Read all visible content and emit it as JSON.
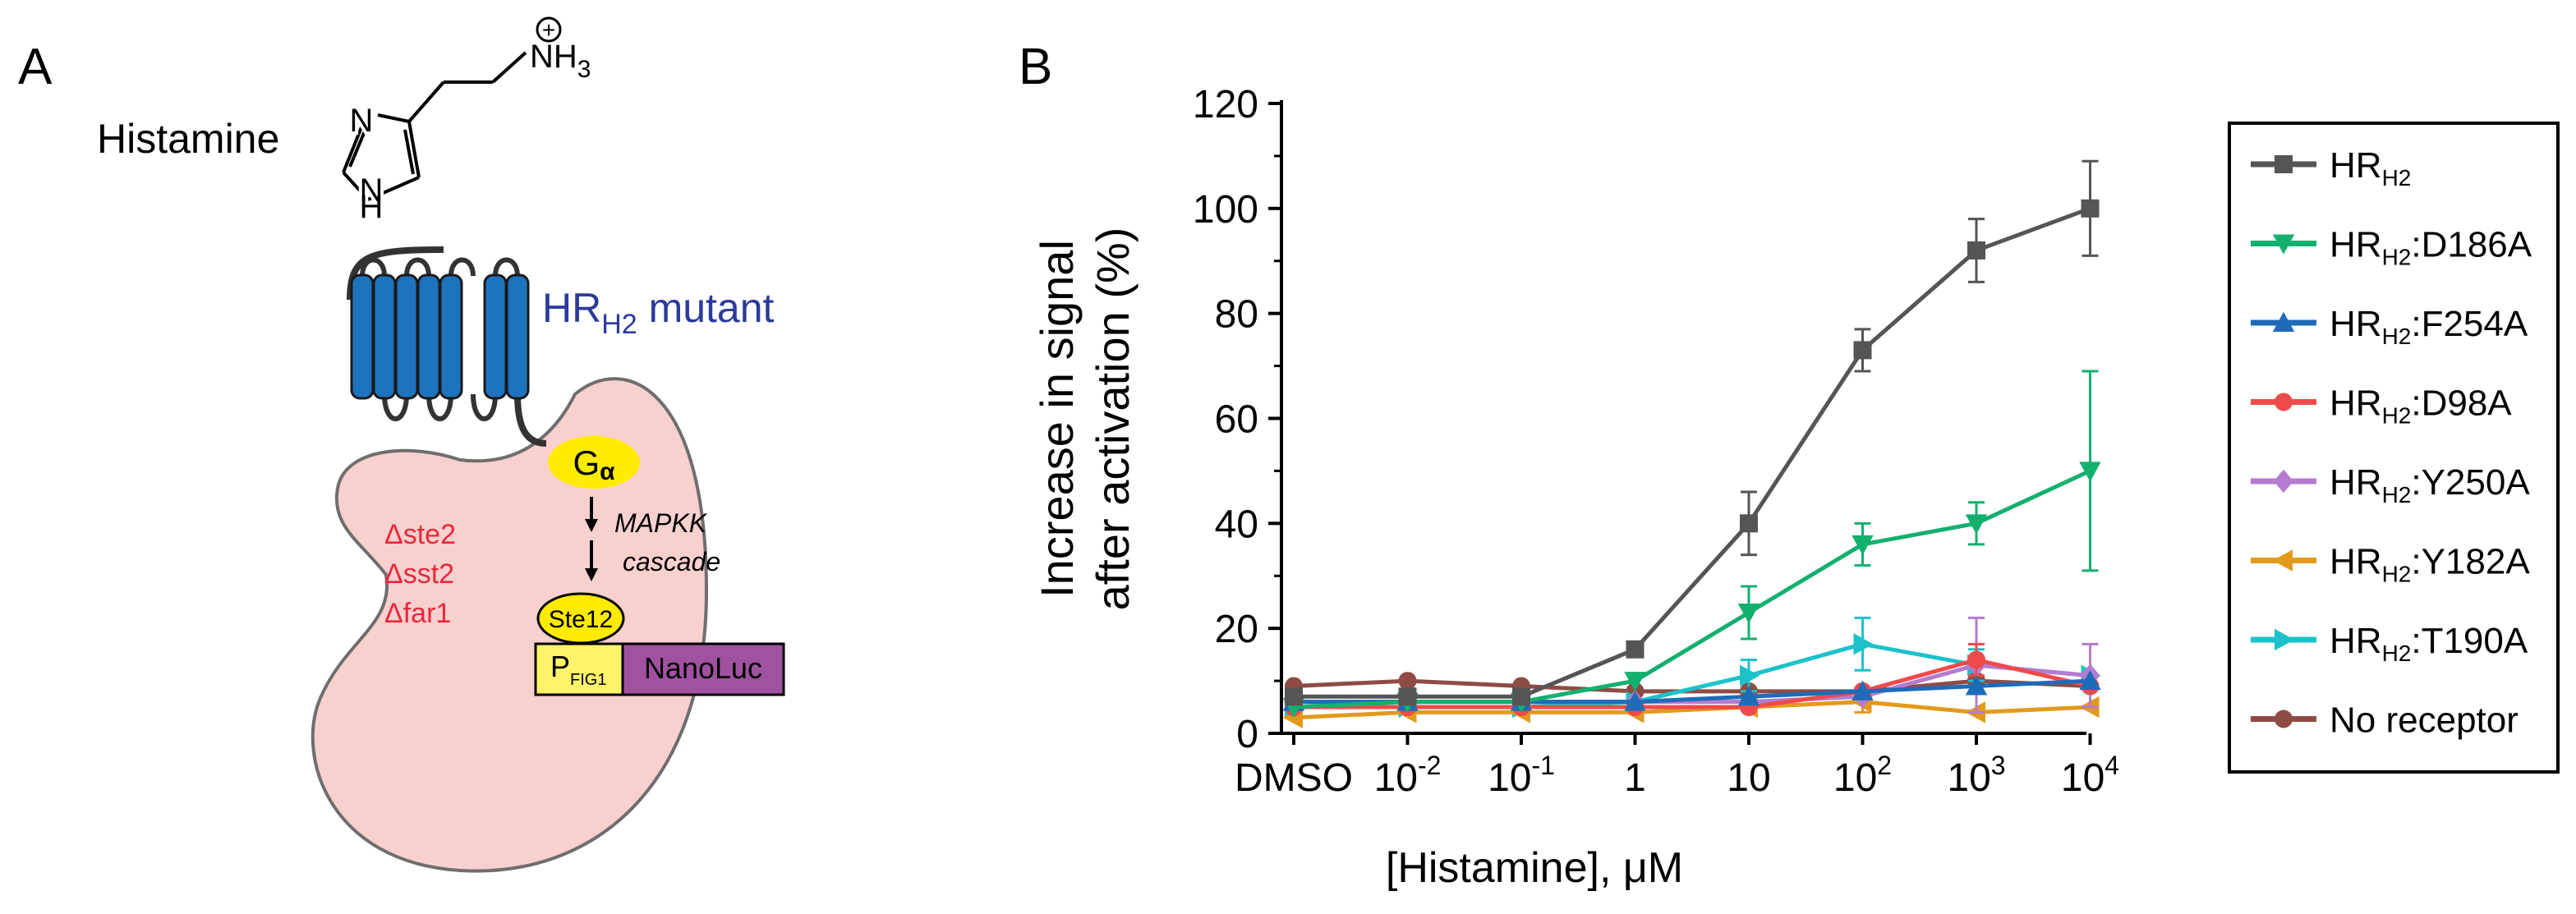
{
  "panels": {
    "a_label": "A",
    "b_label": "B"
  },
  "schematic": {
    "ligand_label": "Histamine",
    "receptor_prefix": "HR",
    "receptor_subscript": "H2",
    "receptor_suffix": " mutant",
    "galpha_main": "G",
    "galpha_sub": "α",
    "deletions": [
      "Δste2",
      "Δsst2",
      "Δfar1"
    ],
    "cascade_line1": "MAPKK",
    "cascade_line2": "cascade",
    "tf_label": "Ste12",
    "promoter_main": "P",
    "promoter_sub": "FIG1",
    "reporter_label": "NanoLuc",
    "structure_atoms": {
      "n_ring_top": "N",
      "n_ring_bottom": "N",
      "h_ring": "H",
      "nh3_main": "NH",
      "nh3_sub": "3",
      "charge": "+"
    },
    "colors": {
      "cell_fill": "#F8D0CE",
      "cell_stroke": "#6E6E6E",
      "receptor_blue": "#1E73BE",
      "receptor_text": "#2B3A9A",
      "galpha_yellow": "#FFEB00",
      "deletion_red": "#E8283A",
      "promoter_yellow": "#FFF36A",
      "reporter_purple": "#A052A0"
    }
  },
  "chart_data": {
    "type": "line",
    "title": "",
    "xlabel": "[Histamine], μM",
    "ylabel_line1": "Increase in signal",
    "ylabel_line2": "after activation (%)",
    "ylim": [
      0,
      120
    ],
    "yticks": [
      0,
      20,
      40,
      60,
      80,
      100,
      120
    ],
    "grid": false,
    "legend_position": "right",
    "categories": [
      "DMSO",
      "10^-2",
      "10^-1",
      "1",
      "10",
      "10^2",
      "10^3",
      "10^4"
    ],
    "category_ticks": [
      {
        "base": "DMSO",
        "exp": ""
      },
      {
        "base": "10",
        "exp": "-2"
      },
      {
        "base": "10",
        "exp": "-1"
      },
      {
        "base": "1",
        "exp": ""
      },
      {
        "base": "10",
        "exp": ""
      },
      {
        "base": "10",
        "exp": "2"
      },
      {
        "base": "10",
        "exp": "3"
      },
      {
        "base": "10",
        "exp": "4"
      }
    ],
    "series": [
      {
        "key": "hrh2",
        "name_main": "HR",
        "name_sub": "H2",
        "name_suffix": "",
        "color": "#555555",
        "marker": "square",
        "x": [
          0,
          1,
          2,
          3,
          4,
          5,
          6,
          7
        ],
        "values": [
          7,
          7,
          7,
          16,
          40,
          73,
          92,
          100
        ],
        "errors": [
          0,
          0,
          0,
          0,
          6,
          4,
          6,
          9
        ]
      },
      {
        "key": "d186a",
        "name_main": "HR",
        "name_sub": "H2",
        "name_suffix": ":D186A",
        "color": "#13B06E",
        "marker": "triangle-down",
        "x": [
          0,
          1,
          2,
          3,
          4,
          5,
          6,
          7
        ],
        "values": [
          5,
          6,
          6,
          10,
          23,
          36,
          40,
          50
        ],
        "errors": [
          0,
          0,
          0,
          0,
          5,
          4,
          4,
          19
        ]
      },
      {
        "key": "f254a",
        "name_main": "HR",
        "name_sub": "H2",
        "name_suffix": ":F254A",
        "color": "#1E6CB8",
        "marker": "triangle-up",
        "x": [
          0,
          1,
          2,
          3,
          4,
          5,
          6,
          7
        ],
        "values": [
          6,
          6,
          6,
          6,
          7,
          8,
          9,
          10
        ],
        "errors": [
          0,
          0,
          0,
          0,
          0,
          0,
          0,
          0
        ]
      },
      {
        "key": "d98a",
        "name_main": "HR",
        "name_sub": "H2",
        "name_suffix": ":D98A",
        "color": "#EF4A4A",
        "marker": "circle",
        "x": [
          0,
          1,
          2,
          3,
          4,
          5,
          6,
          7
        ],
        "values": [
          5,
          5,
          5,
          5,
          5,
          8,
          14,
          9
        ],
        "errors": [
          0,
          0,
          0,
          0,
          0,
          0,
          3,
          0
        ]
      },
      {
        "key": "y250a",
        "name_main": "HR",
        "name_sub": "H2",
        "name_suffix": ":Y250A",
        "color": "#B57BD0",
        "marker": "diamond",
        "x": [
          0,
          1,
          2,
          3,
          4,
          5,
          6,
          7
        ],
        "values": [
          6,
          6,
          6,
          6,
          6,
          7,
          13,
          11
        ],
        "errors": [
          0,
          0,
          0,
          0,
          0,
          0,
          9,
          6
        ]
      },
      {
        "key": "y182a",
        "name_main": "HR",
        "name_sub": "H2",
        "name_suffix": ":Y182A",
        "color": "#E39A1C",
        "marker": "triangle-left",
        "x": [
          0,
          1,
          2,
          3,
          4,
          5,
          6,
          7
        ],
        "values": [
          3,
          4,
          4,
          4,
          5,
          6,
          4,
          5
        ],
        "errors": [
          0,
          0,
          0,
          0,
          0,
          2,
          0,
          0
        ]
      },
      {
        "key": "t190a",
        "name_main": "HR",
        "name_sub": "H2",
        "name_suffix": ":T190A",
        "color": "#1CC2C9",
        "marker": "triangle-right",
        "x": [
          0,
          1,
          2,
          3,
          4,
          5,
          6,
          7
        ],
        "values": [
          5,
          5,
          5,
          6,
          11,
          17,
          13,
          11
        ],
        "errors": [
          0,
          0,
          0,
          0,
          3,
          5,
          3,
          0
        ]
      },
      {
        "key": "noreceptor",
        "name_main": "No receptor",
        "name_sub": "",
        "name_suffix": "",
        "color": "#8E4B45",
        "marker": "circle",
        "x": [
          0,
          1,
          2,
          3,
          4,
          5,
          6,
          7
        ],
        "values": [
          9,
          10,
          9,
          8,
          8,
          8,
          10,
          9
        ],
        "errors": [
          0,
          0,
          0,
          0,
          0,
          0,
          0,
          0
        ]
      }
    ]
  }
}
